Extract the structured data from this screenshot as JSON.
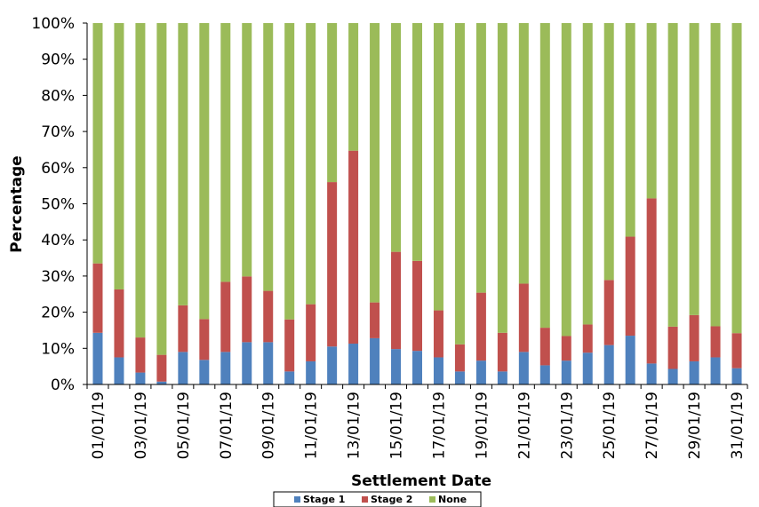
{
  "chart_data": {
    "type": "bar",
    "stacked": "percent",
    "xlabel": "Settlement Date",
    "ylabel": "Percentage",
    "ylim": [
      0,
      100
    ],
    "yticks": [
      "0%",
      "10%",
      "20%",
      "30%",
      "40%",
      "50%",
      "60%",
      "70%",
      "80%",
      "90%",
      "100%"
    ],
    "categories": [
      "01/01/19",
      "02/01/19",
      "03/01/19",
      "04/01/19",
      "05/01/19",
      "06/01/19",
      "07/01/19",
      "08/01/19",
      "09/01/19",
      "10/01/19",
      "11/01/19",
      "12/01/19",
      "13/01/19",
      "14/01/19",
      "15/01/19",
      "16/01/19",
      "17/01/19",
      "18/01/19",
      "19/01/19",
      "20/01/19",
      "21/01/19",
      "22/01/19",
      "23/01/19",
      "24/01/19",
      "25/01/19",
      "26/01/19",
      "27/01/19",
      "28/01/19",
      "29/01/19",
      "30/01/19",
      "31/01/19"
    ],
    "xtick_labels": [
      "01/01/19",
      "",
      "03/01/19",
      "",
      "05/01/19",
      "",
      "07/01/19",
      "",
      "09/01/19",
      "",
      "11/01/19",
      "",
      "13/01/19",
      "",
      "15/01/19",
      "",
      "17/01/19",
      "",
      "19/01/19",
      "",
      "21/01/19",
      "",
      "23/01/19",
      "",
      "25/01/19",
      "",
      "27/01/19",
      "",
      "29/01/19",
      "",
      "31/01/19"
    ],
    "series": [
      {
        "name": "Stage 1",
        "color": "#4f81bd",
        "values": [
          14.3,
          7.5,
          3.3,
          0.8,
          9.0,
          6.8,
          9.0,
          11.7,
          11.7,
          3.6,
          6.4,
          10.5,
          11.3,
          12.8,
          9.8,
          9.3,
          7.5,
          3.6,
          6.6,
          3.6,
          9.0,
          5.3,
          6.6,
          8.8,
          10.9,
          13.5,
          5.8,
          4.3,
          6.4,
          7.5,
          4.5
        ]
      },
      {
        "name": "Stage 2",
        "color": "#c0504d",
        "values": [
          19.2,
          18.8,
          9.7,
          7.4,
          12.9,
          11.3,
          19.4,
          18.2,
          14.2,
          14.4,
          15.8,
          45.5,
          53.4,
          9.9,
          26.9,
          24.9,
          13.0,
          7.5,
          18.8,
          10.7,
          18.9,
          10.4,
          6.8,
          7.8,
          18.0,
          27.4,
          45.7,
          11.7,
          12.8,
          8.6,
          9.7
        ]
      },
      {
        "name": "None",
        "color": "#9bbb59",
        "values": [
          66.5,
          73.7,
          87.0,
          91.8,
          78.1,
          81.9,
          71.6,
          70.1,
          74.1,
          82.0,
          77.8,
          44.0,
          35.3,
          77.3,
          63.3,
          65.8,
          79.5,
          88.9,
          74.6,
          85.7,
          72.1,
          84.3,
          86.6,
          83.4,
          71.1,
          59.1,
          48.5,
          84.0,
          80.8,
          83.9,
          85.8
        ]
      }
    ],
    "legend": {
      "placement": "bottom",
      "labels": [
        "Stage 1",
        "Stage 2",
        "None"
      ]
    },
    "grid": false
  }
}
